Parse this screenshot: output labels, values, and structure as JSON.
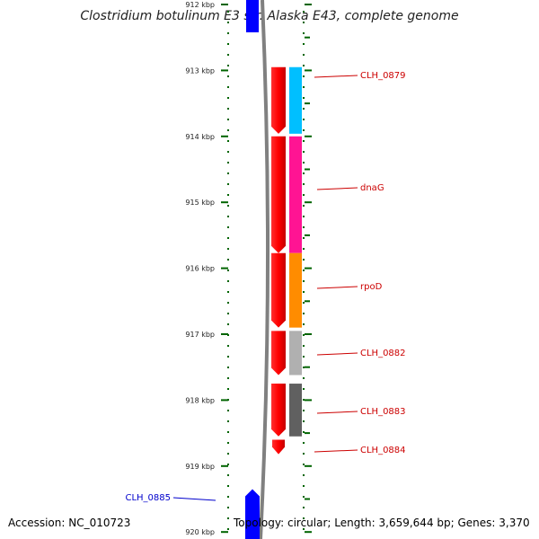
{
  "title": "Clostridium botulinum E3 str. Alaska E43, complete genome",
  "footer": {
    "accession": "Accession: NC_010723",
    "summary": "Topology: circular; Length: 3,659,644 bp; Genes: 3,370"
  },
  "ruler": {
    "ticks": [
      {
        "label": "912 kbp",
        "value": 912
      },
      {
        "label": "913 kbp",
        "value": 913
      },
      {
        "label": "914 kbp",
        "value": 914
      },
      {
        "label": "915 kbp",
        "value": 915
      },
      {
        "label": "916 kbp",
        "value": 916
      },
      {
        "label": "917 kbp",
        "value": 917
      },
      {
        "label": "918 kbp",
        "value": 918
      },
      {
        "label": "919 kbp",
        "value": 919
      },
      {
        "label": "920 kbp",
        "value": 920
      }
    ]
  },
  "genes": [
    {
      "name": "CLH_0879",
      "color": "#00bfff",
      "label_color": "#cc0000",
      "start_kbp": 912.95,
      "end_kbp": 913.96
    },
    {
      "name": "dnaG",
      "color": "#ff1493",
      "label_color": "#cc0000",
      "start_kbp": 914.0,
      "end_kbp": 915.77
    },
    {
      "name": "rpoD",
      "color": "#ff8c00",
      "label_color": "#cc0000",
      "start_kbp": 915.77,
      "end_kbp": 916.9
    },
    {
      "name": "CLH_0882",
      "color": "#b0b0b0",
      "label_color": "#cc0000",
      "start_kbp": 916.95,
      "end_kbp": 917.62
    },
    {
      "name": "CLH_0883",
      "color": "#606060",
      "label_color": "#cc0000",
      "start_kbp": 917.75,
      "end_kbp": 918.55
    },
    {
      "name": "CLH_0884",
      "color": "#ff0000",
      "label_color": "#cc0000",
      "start_kbp": 918.6,
      "end_kbp": 918.82
    },
    {
      "name": "CLH_0885",
      "color": "#0000ff",
      "label_color": "#0000cc",
      "start_kbp": 919.35,
      "end_kbp": 920.2
    }
  ],
  "colors": {
    "backbone": "#808080",
    "cds_forward": "#ff0000",
    "cds_reverse": "#0000ff",
    "tick": "#006400"
  }
}
